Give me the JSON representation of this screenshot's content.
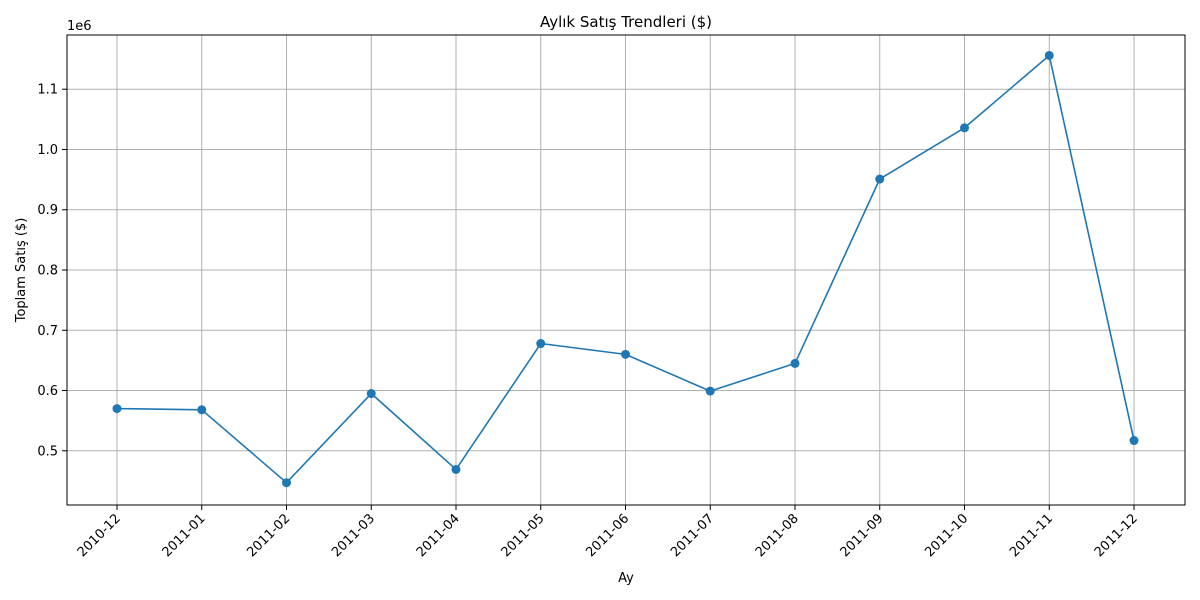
{
  "chart_data": {
    "type": "line",
    "title": "Aylık Satış Trendleri ($)",
    "xlabel": "Ay",
    "ylabel": "Toplam Satış ($)",
    "y_offset_label": "1e6",
    "categories": [
      "2010-12",
      "2011-01",
      "2011-02",
      "2011-03",
      "2011-04",
      "2011-05",
      "2011-06",
      "2011-07",
      "2011-08",
      "2011-09",
      "2011-10",
      "2011-11",
      "2011-12"
    ],
    "series": [
      {
        "values": [
          570000,
          568000,
          447000,
          595000,
          469000,
          678000,
          660000,
          599000,
          645000,
          951000,
          1036000,
          1156000,
          517000
        ],
        "color": "#1f77b4",
        "marker": "circle"
      }
    ],
    "ylim": [
      410000,
      1190000
    ],
    "yticks": [
      500000,
      600000,
      700000,
      800000,
      900000,
      1000000,
      1100000
    ],
    "ytick_labels": [
      "0.5",
      "0.6",
      "0.7",
      "0.8",
      "0.9",
      "1.0",
      "1.1"
    ],
    "xtick_rotation": 45,
    "grid": true,
    "legend": "none"
  }
}
